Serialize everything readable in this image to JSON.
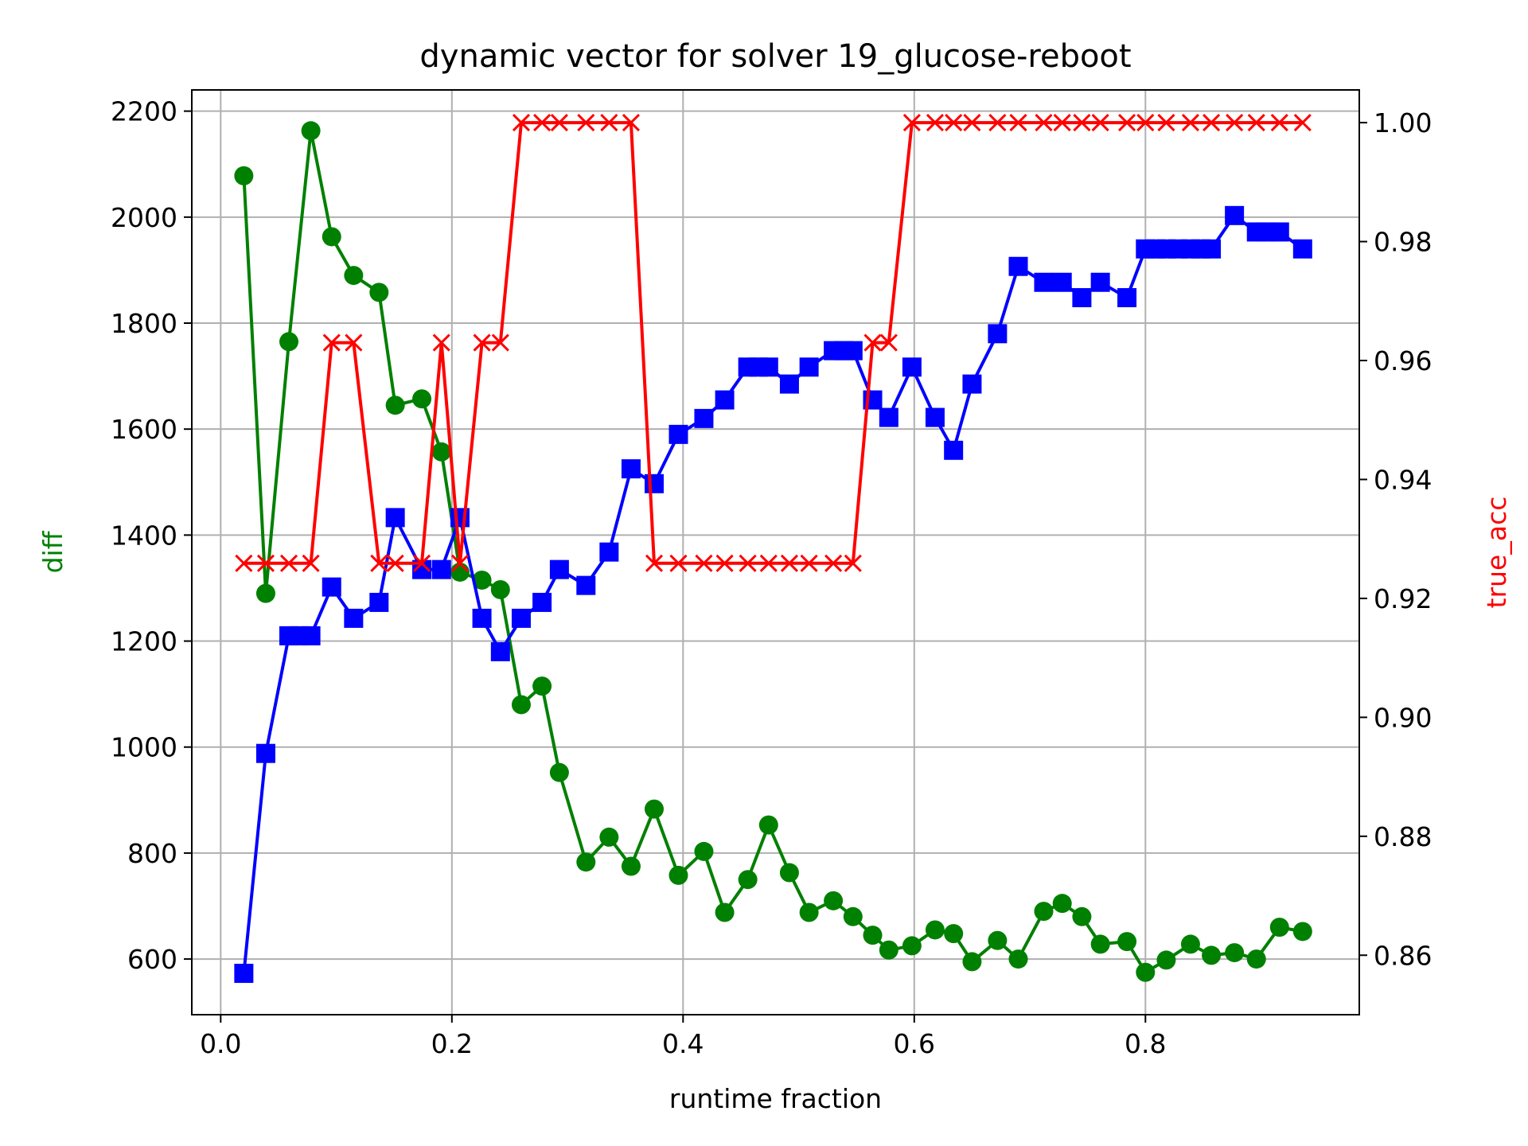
{
  "chart_data": {
    "type": "line",
    "title": "dynamic vector for solver 19_glucose-reboot",
    "xlabel": "runtime fraction",
    "ylabel_left": "diff",
    "ylabel_right": "true_acc",
    "xlim": [
      -0.025,
      0.985
    ],
    "ylim_left": [
      495,
      2240
    ],
    "ylim_right": [
      0.85,
      1.0055
    ],
    "xticks": [
      0.0,
      0.2,
      0.4,
      0.6,
      0.8
    ],
    "xtick_labels": [
      "0.0",
      "0.2",
      "0.4",
      "0.6",
      "0.8"
    ],
    "yticks_left": [
      600,
      800,
      1000,
      1200,
      1400,
      1600,
      1800,
      2000,
      2200
    ],
    "ytick_labels_left": [
      "600",
      "800",
      "1000",
      "1200",
      "1400",
      "1600",
      "1800",
      "2000",
      "2200"
    ],
    "yticks_right": [
      0.86,
      0.88,
      0.9,
      0.92,
      0.94,
      0.96,
      0.98,
      1.0
    ],
    "ytick_labels_right": [
      "0.86",
      "0.88",
      "0.90",
      "0.92",
      "0.94",
      "0.96",
      "0.98",
      "1.00"
    ],
    "grid": true,
    "colors": {
      "diff": "#008000",
      "blue": "#0000ff",
      "true_acc": "#ff0000"
    },
    "series": [
      {
        "axis": "left",
        "marker": "circle",
        "color": "#008000",
        "points": [
          [
            0.02,
            2078
          ],
          [
            0.039,
            1290
          ],
          [
            0.059,
            1765
          ],
          [
            0.078,
            2163
          ],
          [
            0.096,
            1963
          ],
          [
            0.115,
            1890
          ],
          [
            0.137,
            1858
          ],
          [
            0.151,
            1645
          ],
          [
            0.174,
            1657
          ],
          [
            0.191,
            1557
          ],
          [
            0.207,
            1330
          ],
          [
            0.226,
            1315
          ],
          [
            0.242,
            1297
          ],
          [
            0.26,
            1080
          ],
          [
            0.278,
            1115
          ],
          [
            0.293,
            952
          ],
          [
            0.316,
            783
          ],
          [
            0.336,
            830
          ],
          [
            0.355,
            775
          ],
          [
            0.375,
            883
          ],
          [
            0.396,
            758
          ],
          [
            0.418,
            803
          ],
          [
            0.436,
            688
          ],
          [
            0.456,
            750
          ],
          [
            0.474,
            853
          ],
          [
            0.492,
            763
          ],
          [
            0.509,
            688
          ],
          [
            0.53,
            710
          ],
          [
            0.547,
            680
          ],
          [
            0.564,
            645
          ],
          [
            0.578,
            617
          ],
          [
            0.598,
            625
          ],
          [
            0.618,
            655
          ],
          [
            0.634,
            648
          ],
          [
            0.65,
            595
          ],
          [
            0.672,
            635
          ],
          [
            0.69,
            600
          ],
          [
            0.712,
            690
          ],
          [
            0.728,
            705
          ],
          [
            0.745,
            680
          ],
          [
            0.761,
            628
          ],
          [
            0.784,
            633
          ],
          [
            0.8,
            575
          ],
          [
            0.818,
            598
          ],
          [
            0.839,
            628
          ],
          [
            0.857,
            607
          ],
          [
            0.877,
            612
          ],
          [
            0.896,
            600
          ],
          [
            0.916,
            660
          ],
          [
            0.936,
            652
          ]
        ]
      },
      {
        "axis": "left",
        "marker": "square",
        "color": "#0000ff",
        "points": [
          [
            0.02,
            573
          ],
          [
            0.039,
            988
          ],
          [
            0.059,
            1210
          ],
          [
            0.068,
            1210
          ],
          [
            0.078,
            1210
          ],
          [
            0.096,
            1302
          ],
          [
            0.115,
            1243
          ],
          [
            0.137,
            1273
          ],
          [
            0.151,
            1433
          ],
          [
            0.174,
            1335
          ],
          [
            0.191,
            1335
          ],
          [
            0.207,
            1433
          ],
          [
            0.226,
            1243
          ],
          [
            0.242,
            1180
          ],
          [
            0.26,
            1243
          ],
          [
            0.278,
            1273
          ],
          [
            0.293,
            1335
          ],
          [
            0.316,
            1305
          ],
          [
            0.336,
            1368
          ],
          [
            0.355,
            1525
          ],
          [
            0.375,
            1497
          ],
          [
            0.396,
            1590
          ],
          [
            0.418,
            1620
          ],
          [
            0.436,
            1655
          ],
          [
            0.456,
            1717
          ],
          [
            0.465,
            1717
          ],
          [
            0.474,
            1717
          ],
          [
            0.492,
            1685
          ],
          [
            0.509,
            1717
          ],
          [
            0.53,
            1748
          ],
          [
            0.539,
            1748
          ],
          [
            0.547,
            1748
          ],
          [
            0.564,
            1655
          ],
          [
            0.578,
            1622
          ],
          [
            0.598,
            1717
          ],
          [
            0.618,
            1622
          ],
          [
            0.634,
            1560
          ],
          [
            0.65,
            1685
          ],
          [
            0.672,
            1780
          ],
          [
            0.69,
            1907
          ],
          [
            0.712,
            1877
          ],
          [
            0.728,
            1877
          ],
          [
            0.745,
            1848
          ],
          [
            0.761,
            1877
          ],
          [
            0.784,
            1848
          ],
          [
            0.8,
            1940
          ],
          [
            0.809,
            1940
          ],
          [
            0.818,
            1940
          ],
          [
            0.828,
            1940
          ],
          [
            0.839,
            1940
          ],
          [
            0.848,
            1940
          ],
          [
            0.857,
            1940
          ],
          [
            0.877,
            2003
          ],
          [
            0.896,
            1972
          ],
          [
            0.905,
            1972
          ],
          [
            0.916,
            1972
          ],
          [
            0.936,
            1940
          ]
        ]
      },
      {
        "axis": "right",
        "marker": "x",
        "color": "#ff0000",
        "points": [
          [
            0.02,
            0.9259
          ],
          [
            0.039,
            0.9259
          ],
          [
            0.059,
            0.9259
          ],
          [
            0.078,
            0.9259
          ],
          [
            0.096,
            0.963
          ],
          [
            0.115,
            0.963
          ],
          [
            0.137,
            0.9259
          ],
          [
            0.151,
            0.9259
          ],
          [
            0.174,
            0.9259
          ],
          [
            0.191,
            0.963
          ],
          [
            0.207,
            0.9259
          ],
          [
            0.226,
            0.963
          ],
          [
            0.242,
            0.963
          ],
          [
            0.26,
            1.0
          ],
          [
            0.278,
            1.0
          ],
          [
            0.293,
            1.0
          ],
          [
            0.316,
            1.0
          ],
          [
            0.336,
            1.0
          ],
          [
            0.355,
            1.0
          ],
          [
            0.375,
            0.9259
          ],
          [
            0.396,
            0.9259
          ],
          [
            0.418,
            0.9259
          ],
          [
            0.436,
            0.9259
          ],
          [
            0.456,
            0.9259
          ],
          [
            0.474,
            0.9259
          ],
          [
            0.492,
            0.9259
          ],
          [
            0.509,
            0.9259
          ],
          [
            0.53,
            0.9259
          ],
          [
            0.547,
            0.9259
          ],
          [
            0.564,
            0.963
          ],
          [
            0.578,
            0.963
          ],
          [
            0.598,
            1.0
          ],
          [
            0.618,
            1.0
          ],
          [
            0.634,
            1.0
          ],
          [
            0.65,
            1.0
          ],
          [
            0.672,
            1.0
          ],
          [
            0.69,
            1.0
          ],
          [
            0.712,
            1.0
          ],
          [
            0.728,
            1.0
          ],
          [
            0.745,
            1.0
          ],
          [
            0.761,
            1.0
          ],
          [
            0.784,
            1.0
          ],
          [
            0.8,
            1.0
          ],
          [
            0.818,
            1.0
          ],
          [
            0.839,
            1.0
          ],
          [
            0.857,
            1.0
          ],
          [
            0.877,
            1.0
          ],
          [
            0.896,
            1.0
          ],
          [
            0.916,
            1.0
          ],
          [
            0.936,
            1.0
          ]
        ]
      }
    ]
  }
}
